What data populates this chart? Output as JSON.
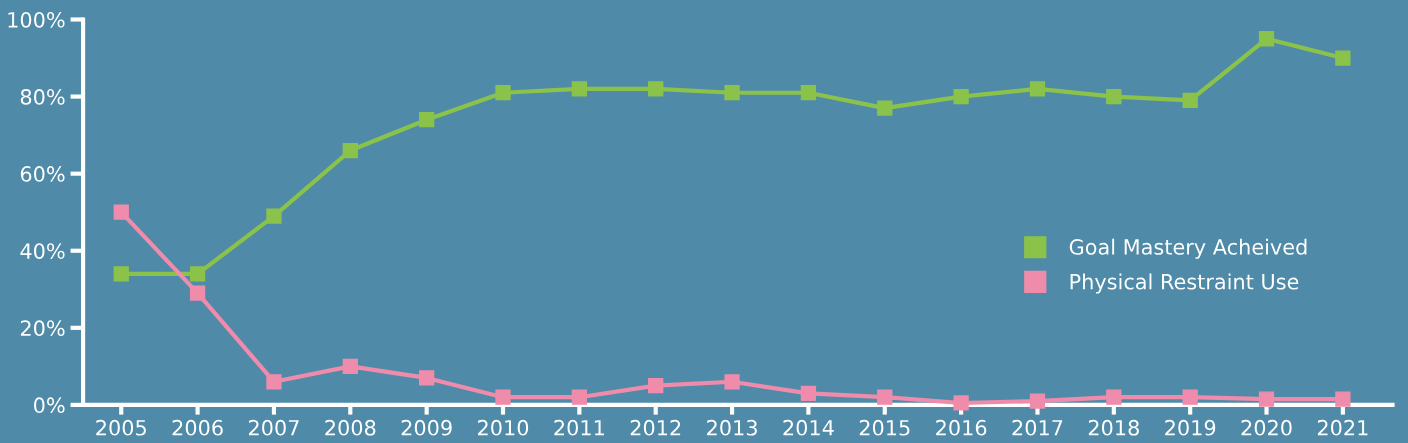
{
  "chart_data": {
    "type": "line",
    "categories": [
      "2005",
      "2006",
      "2007",
      "2008",
      "2009",
      "2010",
      "2011",
      "2012",
      "2013",
      "2014",
      "2015",
      "2016",
      "2017",
      "2018",
      "2019",
      "2020",
      "2021"
    ],
    "series": [
      {
        "name": "Goal Mastery Acheived",
        "color": "#8bc34a",
        "values": [
          34,
          34,
          49,
          66,
          74,
          81,
          82,
          82,
          81,
          81,
          77,
          80,
          82,
          80,
          79,
          95,
          90
        ]
      },
      {
        "name": "Physical Restraint Use",
        "color": "#f08cab",
        "values": [
          50,
          29,
          6,
          10,
          7,
          2,
          2,
          5,
          6,
          3,
          2,
          0.5,
          1,
          2,
          2,
          1.5,
          1.5
        ]
      }
    ],
    "ylim": [
      0,
      100
    ],
    "yticks": [
      {
        "value": 0,
        "label": "0%"
      },
      {
        "value": 20,
        "label": "20%"
      },
      {
        "value": 40,
        "label": "40%"
      },
      {
        "value": 60,
        "label": "60%"
      },
      {
        "value": 80,
        "label": "80%"
      },
      {
        "value": 100,
        "label": "100%"
      }
    ],
    "grid": false,
    "legend": "right",
    "marker": "square",
    "line_style": "solid"
  }
}
